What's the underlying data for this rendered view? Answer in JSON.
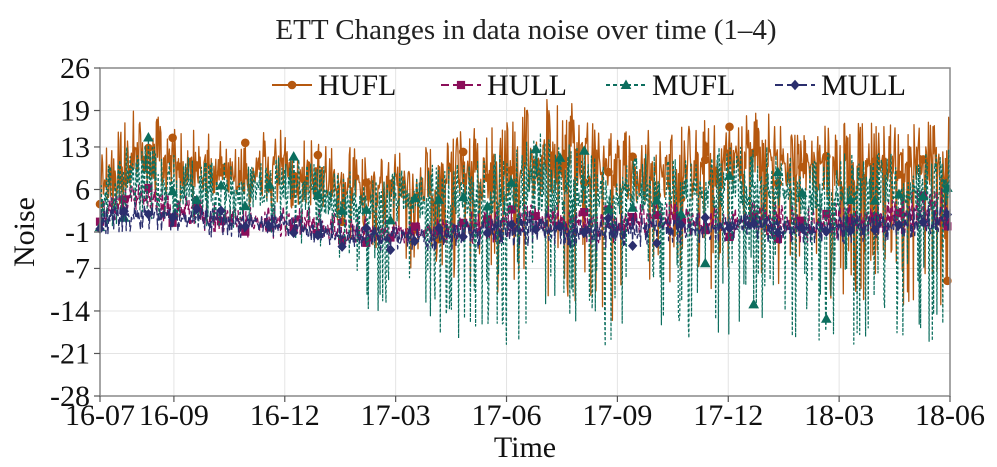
{
  "chart_data": {
    "type": "line",
    "title": "ETT Changes in data noise over time (1–4)",
    "xlabel": "Time",
    "ylabel": "Noise",
    "ylim": [
      -28,
      26
    ],
    "y_ticks": [
      "26",
      "19",
      "13",
      "6",
      "-1",
      "-7",
      "-14",
      "-21",
      "-28"
    ],
    "y_tick_values": [
      26,
      19,
      13,
      6,
      -1,
      -7,
      -14,
      -21,
      -28
    ],
    "x_ticks": [
      "16-07",
      "16-09",
      "16-12",
      "17-03",
      "17-06",
      "17-09",
      "17-12",
      "18-03",
      "18-06"
    ],
    "x_tick_months": [
      0,
      2,
      5,
      8,
      11,
      14,
      17,
      20,
      23
    ],
    "x_range_months": [
      0,
      23
    ],
    "grid": true,
    "legend_position": "top-right",
    "series": [
      {
        "name": "HUFL",
        "color": "#b5580f",
        "marker": "circle",
        "x_months": [
          0,
          1,
          2,
          3,
          4,
          5,
          6,
          7,
          8,
          9,
          10,
          11,
          12,
          13,
          14,
          15,
          16,
          17,
          18,
          19,
          20,
          21,
          22,
          23
        ],
        "center": [
          6,
          12,
          9.5,
          9,
          8,
          9.5,
          7,
          6,
          6,
          7,
          8,
          8,
          10,
          11,
          8,
          8,
          8,
          10,
          11,
          9,
          8,
          9,
          10,
          10
        ],
        "upper": [
          12,
          21,
          17,
          15,
          15,
          16,
          14,
          13,
          12,
          14,
          16,
          17,
          22,
          20,
          17,
          17,
          17,
          18,
          19,
          16,
          17,
          17,
          17,
          18
        ],
        "lower": [
          2,
          5,
          4,
          4,
          3,
          3,
          2,
          -5,
          -7,
          -8,
          -10,
          -12,
          -13,
          -14,
          -16,
          -10,
          -12,
          -11,
          -9,
          -13,
          -12,
          -14,
          -13,
          -14
        ]
      },
      {
        "name": "HULL",
        "color": "#8b0f5a",
        "marker": "square",
        "x_months": [
          0,
          1,
          2,
          3,
          4,
          5,
          6,
          7,
          8,
          9,
          10,
          11,
          12,
          13,
          14,
          15,
          16,
          17,
          18,
          19,
          20,
          21,
          22,
          23
        ],
        "center": [
          2,
          4,
          3,
          1.5,
          0.5,
          1,
          0,
          -1,
          -1,
          -1,
          0,
          0,
          1,
          0,
          0,
          1,
          1,
          1,
          1,
          0,
          1,
          1,
          2,
          2
        ],
        "upper": [
          4,
          7,
          6,
          4,
          3,
          4,
          3,
          2,
          1,
          1,
          3,
          3,
          4,
          3,
          3,
          4,
          4,
          4,
          4,
          3,
          4,
          4,
          6,
          7
        ],
        "lower": [
          0,
          1,
          0,
          -1,
          -2,
          -2,
          -2,
          -3,
          -3,
          -3,
          -3,
          -3,
          -2,
          -3,
          -3,
          -2,
          -2,
          -2,
          -2,
          -3,
          -2,
          -2,
          -1,
          -1
        ]
      },
      {
        "name": "MUFL",
        "color": "#0c6e5e",
        "marker": "triangle",
        "x_months": [
          0,
          1,
          2,
          3,
          4,
          5,
          6,
          7,
          8,
          9,
          10,
          11,
          12,
          13,
          14,
          15,
          16,
          17,
          18,
          19,
          20,
          21,
          22,
          23
        ],
        "center": [
          3,
          8,
          6,
          6,
          5,
          6,
          4,
          3,
          3,
          4,
          5,
          5,
          6,
          6,
          5,
          5,
          5,
          6,
          7,
          5,
          5,
          6,
          6,
          6
        ],
        "upper": [
          8,
          16,
          12,
          11,
          10,
          12,
          10,
          9,
          9,
          10,
          12,
          12,
          16,
          14,
          12,
          12,
          12,
          14,
          14,
          12,
          12,
          12,
          12,
          13
        ],
        "lower": [
          -1,
          2,
          0,
          0,
          -1,
          -2,
          -4,
          -13,
          -17,
          -21,
          -20,
          -20,
          -18,
          -20,
          -22,
          -17,
          -19,
          -18,
          -16,
          -20,
          -18,
          -23,
          -20,
          -20
        ]
      },
      {
        "name": "MULL",
        "color": "#2b2f6e",
        "marker": "diamond",
        "x_months": [
          0,
          1,
          2,
          3,
          4,
          5,
          6,
          7,
          8,
          9,
          10,
          11,
          12,
          13,
          14,
          15,
          16,
          17,
          18,
          19,
          20,
          21,
          22,
          23
        ],
        "center": [
          1,
          2,
          1.5,
          1,
          0.5,
          0.5,
          -1,
          -2,
          -2,
          -2,
          -1,
          -1,
          0,
          -1,
          -1,
          0,
          0,
          0,
          0,
          -1,
          0,
          0,
          0.5,
          0.5
        ],
        "upper": [
          3,
          4,
          3,
          3,
          2,
          2,
          1,
          0,
          0,
          0,
          1,
          2,
          3,
          2,
          2,
          2,
          2,
          2,
          2,
          1,
          2,
          2,
          3,
          4
        ],
        "lower": [
          -2,
          -1,
          -1,
          -2,
          -2,
          -2,
          -3,
          -4,
          -4,
          -4,
          -4,
          -4,
          -3,
          -4,
          -4,
          -3,
          -3,
          -3,
          -3,
          -4,
          -3,
          -3,
          -2,
          -2
        ]
      }
    ]
  }
}
